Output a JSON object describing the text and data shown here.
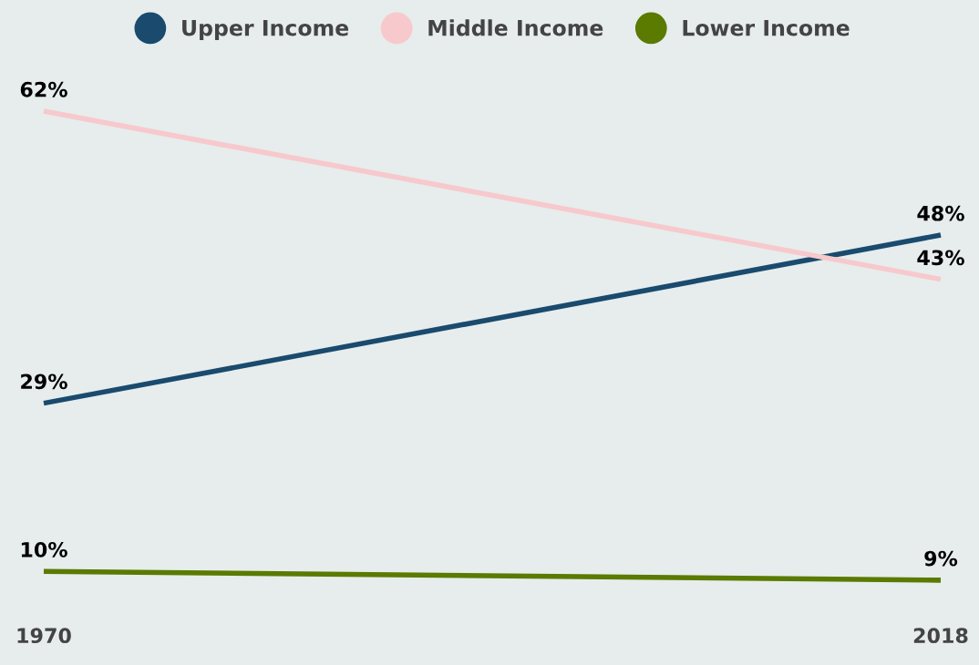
{
  "chart_data": {
    "type": "line",
    "categories": [
      "1970",
      "2018"
    ],
    "series": [
      {
        "name": "Upper Income",
        "color": "#1a4a6e",
        "values": [
          29,
          48
        ],
        "value_labels": [
          "29%",
          "48%"
        ]
      },
      {
        "name": "Middle Income",
        "color": "#f7c9cc",
        "values": [
          62,
          43
        ],
        "value_labels": [
          "62%",
          "43%"
        ]
      },
      {
        "name": "Lower Income",
        "color": "#5a7a00",
        "values": [
          10,
          9
        ],
        "value_labels": [
          "10%",
          "9%"
        ]
      }
    ],
    "data_labels": true,
    "legend": "top",
    "grid": false,
    "marker": "none",
    "line_style": "solid",
    "tick_labels": "x"
  }
}
